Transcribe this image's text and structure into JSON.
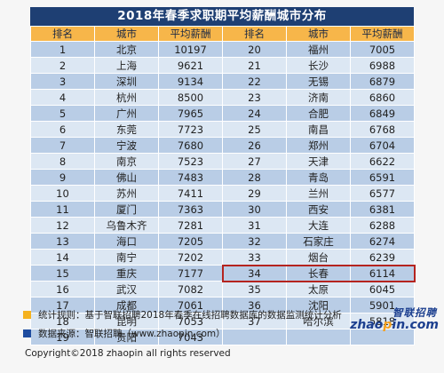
{
  "title": "2018年春季求职期平均薪酬城市分布",
  "headers": [
    "排名",
    "城市",
    "平均薪酬",
    "排名",
    "城市",
    "平均薪酬"
  ],
  "rows": [
    {
      "r1": "1",
      "c1": "北京",
      "s1": "10197",
      "r2": "20",
      "c2": "福州",
      "s2": "7005"
    },
    {
      "r1": "2",
      "c1": "上海",
      "s1": "9621",
      "r2": "21",
      "c2": "长沙",
      "s2": "6988"
    },
    {
      "r1": "3",
      "c1": "深圳",
      "s1": "9134",
      "r2": "22",
      "c2": "无锡",
      "s2": "6879"
    },
    {
      "r1": "4",
      "c1": "杭州",
      "s1": "8500",
      "r2": "23",
      "c2": "济南",
      "s2": "6860"
    },
    {
      "r1": "5",
      "c1": "广州",
      "s1": "7965",
      "r2": "24",
      "c2": "合肥",
      "s2": "6849"
    },
    {
      "r1": "6",
      "c1": "东莞",
      "s1": "7723",
      "r2": "25",
      "c2": "南昌",
      "s2": "6768"
    },
    {
      "r1": "7",
      "c1": "宁波",
      "s1": "7680",
      "r2": "26",
      "c2": "郑州",
      "s2": "6704"
    },
    {
      "r1": "8",
      "c1": "南京",
      "s1": "7523",
      "r2": "27",
      "c2": "天津",
      "s2": "6622"
    },
    {
      "r1": "9",
      "c1": "佛山",
      "s1": "7483",
      "r2": "28",
      "c2": "青岛",
      "s2": "6591"
    },
    {
      "r1": "10",
      "c1": "苏州",
      "s1": "7411",
      "r2": "29",
      "c2": "兰州",
      "s2": "6577"
    },
    {
      "r1": "11",
      "c1": "厦门",
      "s1": "7363",
      "r2": "30",
      "c2": "西安",
      "s2": "6381"
    },
    {
      "r1": "12",
      "c1": "乌鲁木齐",
      "s1": "7281",
      "r2": "31",
      "c2": "大连",
      "s2": "6288"
    },
    {
      "r1": "13",
      "c1": "海口",
      "s1": "7205",
      "r2": "32",
      "c2": "石家庄",
      "s2": "6274"
    },
    {
      "r1": "14",
      "c1": "南宁",
      "s1": "7202",
      "r2": "33",
      "c2": "烟台",
      "s2": "6239"
    },
    {
      "r1": "15",
      "c1": "重庆",
      "s1": "7177",
      "r2": "34",
      "c2": "长春",
      "s2": "6114"
    },
    {
      "r1": "16",
      "c1": "武汉",
      "s1": "7082",
      "r2": "35",
      "c2": "太原",
      "s2": "6045"
    },
    {
      "r1": "17",
      "c1": "成都",
      "s1": "7061",
      "r2": "36",
      "c2": "沈阳",
      "s2": "5901"
    },
    {
      "r1": "18",
      "c1": "昆明",
      "s1": "7053",
      "r2": "37",
      "c2": "哈尔滨",
      "s2": "5818"
    },
    {
      "r1": "19",
      "c1": "贵阳",
      "s1": "7043",
      "r2": "",
      "c2": "",
      "s2": ""
    }
  ],
  "highlighted_rank": "34",
  "notes": {
    "stats_rule": "统计规则：基于智联招聘2018年春季在线招聘数据库的数据监测统计分析",
    "source": "数据来源：智联招聘（www.zhaopin.com）"
  },
  "logo": {
    "cn": "智联招聘",
    "en_prefix": "zhao",
    "en_dot": "p",
    "en_suffix": "in.com"
  },
  "copyright": "Copyright©2018 zhaopin all rights reserved",
  "colors": {
    "title_bg": "#1e3f73",
    "header_bg": "#f7b64a",
    "row_dark": "#b9cde6",
    "row_light": "#dce7f3",
    "highlight_border": "#b5241f",
    "note_square_orange": "#f5b21f",
    "note_square_blue": "#1e4ca0"
  }
}
